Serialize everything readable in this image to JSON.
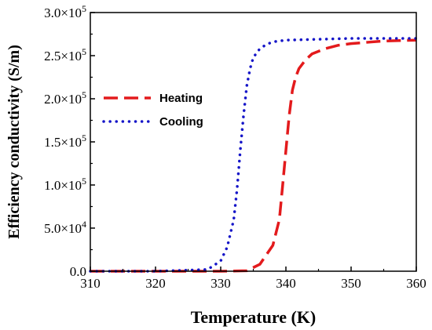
{
  "chart_data": {
    "type": "line",
    "title": "",
    "xlabel": "Temperature (K)",
    "ylabel": "Efficiency conductivity (S/m)",
    "xlim": [
      310,
      360
    ],
    "ylim": [
      0,
      300000
    ],
    "x_ticks": [
      310,
      320,
      330,
      340,
      350,
      360
    ],
    "x_tick_labels": [
      "310",
      "320",
      "330",
      "340",
      "350",
      "360"
    ],
    "y_ticks": [
      {
        "value": 0,
        "mantissa": "0.0",
        "exp": ""
      },
      {
        "value": 50000,
        "mantissa": "5.0×10",
        "exp": "4"
      },
      {
        "value": 100000,
        "mantissa": "1.0×10",
        "exp": "5"
      },
      {
        "value": 150000,
        "mantissa": "1.5×10",
        "exp": "5"
      },
      {
        "value": 200000,
        "mantissa": "2.0×10",
        "exp": "5"
      },
      {
        "value": 250000,
        "mantissa": "2.5×10",
        "exp": "5"
      },
      {
        "value": 300000,
        "mantissa": "3.0×10",
        "exp": "5"
      }
    ],
    "grid": false,
    "legend": "center-left",
    "series": [
      {
        "name": "Heating",
        "color": "#e31a1c",
        "style": "dashed",
        "x": [
          310,
          320,
          330,
          334,
          336,
          338,
          339,
          339.5,
          340,
          340.5,
          341,
          341.5,
          342,
          343,
          344,
          346,
          348,
          350,
          355,
          360
        ],
        "y": [
          0,
          0,
          0,
          500,
          8000,
          30000,
          60000,
          100000,
          140000,
          180000,
          210000,
          225000,
          235000,
          245000,
          252000,
          258000,
          262000,
          264000,
          267000,
          268000
        ]
      },
      {
        "name": "Cooling",
        "color": "#1515c8",
        "style": "dotted",
        "x": [
          310,
          320,
          328,
          330,
          331,
          332,
          332.5,
          333,
          333.5,
          334,
          334.5,
          335,
          336,
          337,
          338,
          340,
          345,
          350,
          355,
          360
        ],
        "y": [
          0,
          0,
          2000,
          12000,
          28000,
          60000,
          95000,
          140000,
          180000,
          215000,
          235000,
          248000,
          258000,
          263000,
          266000,
          268000,
          269000,
          270000,
          270000,
          270000
        ]
      }
    ]
  }
}
